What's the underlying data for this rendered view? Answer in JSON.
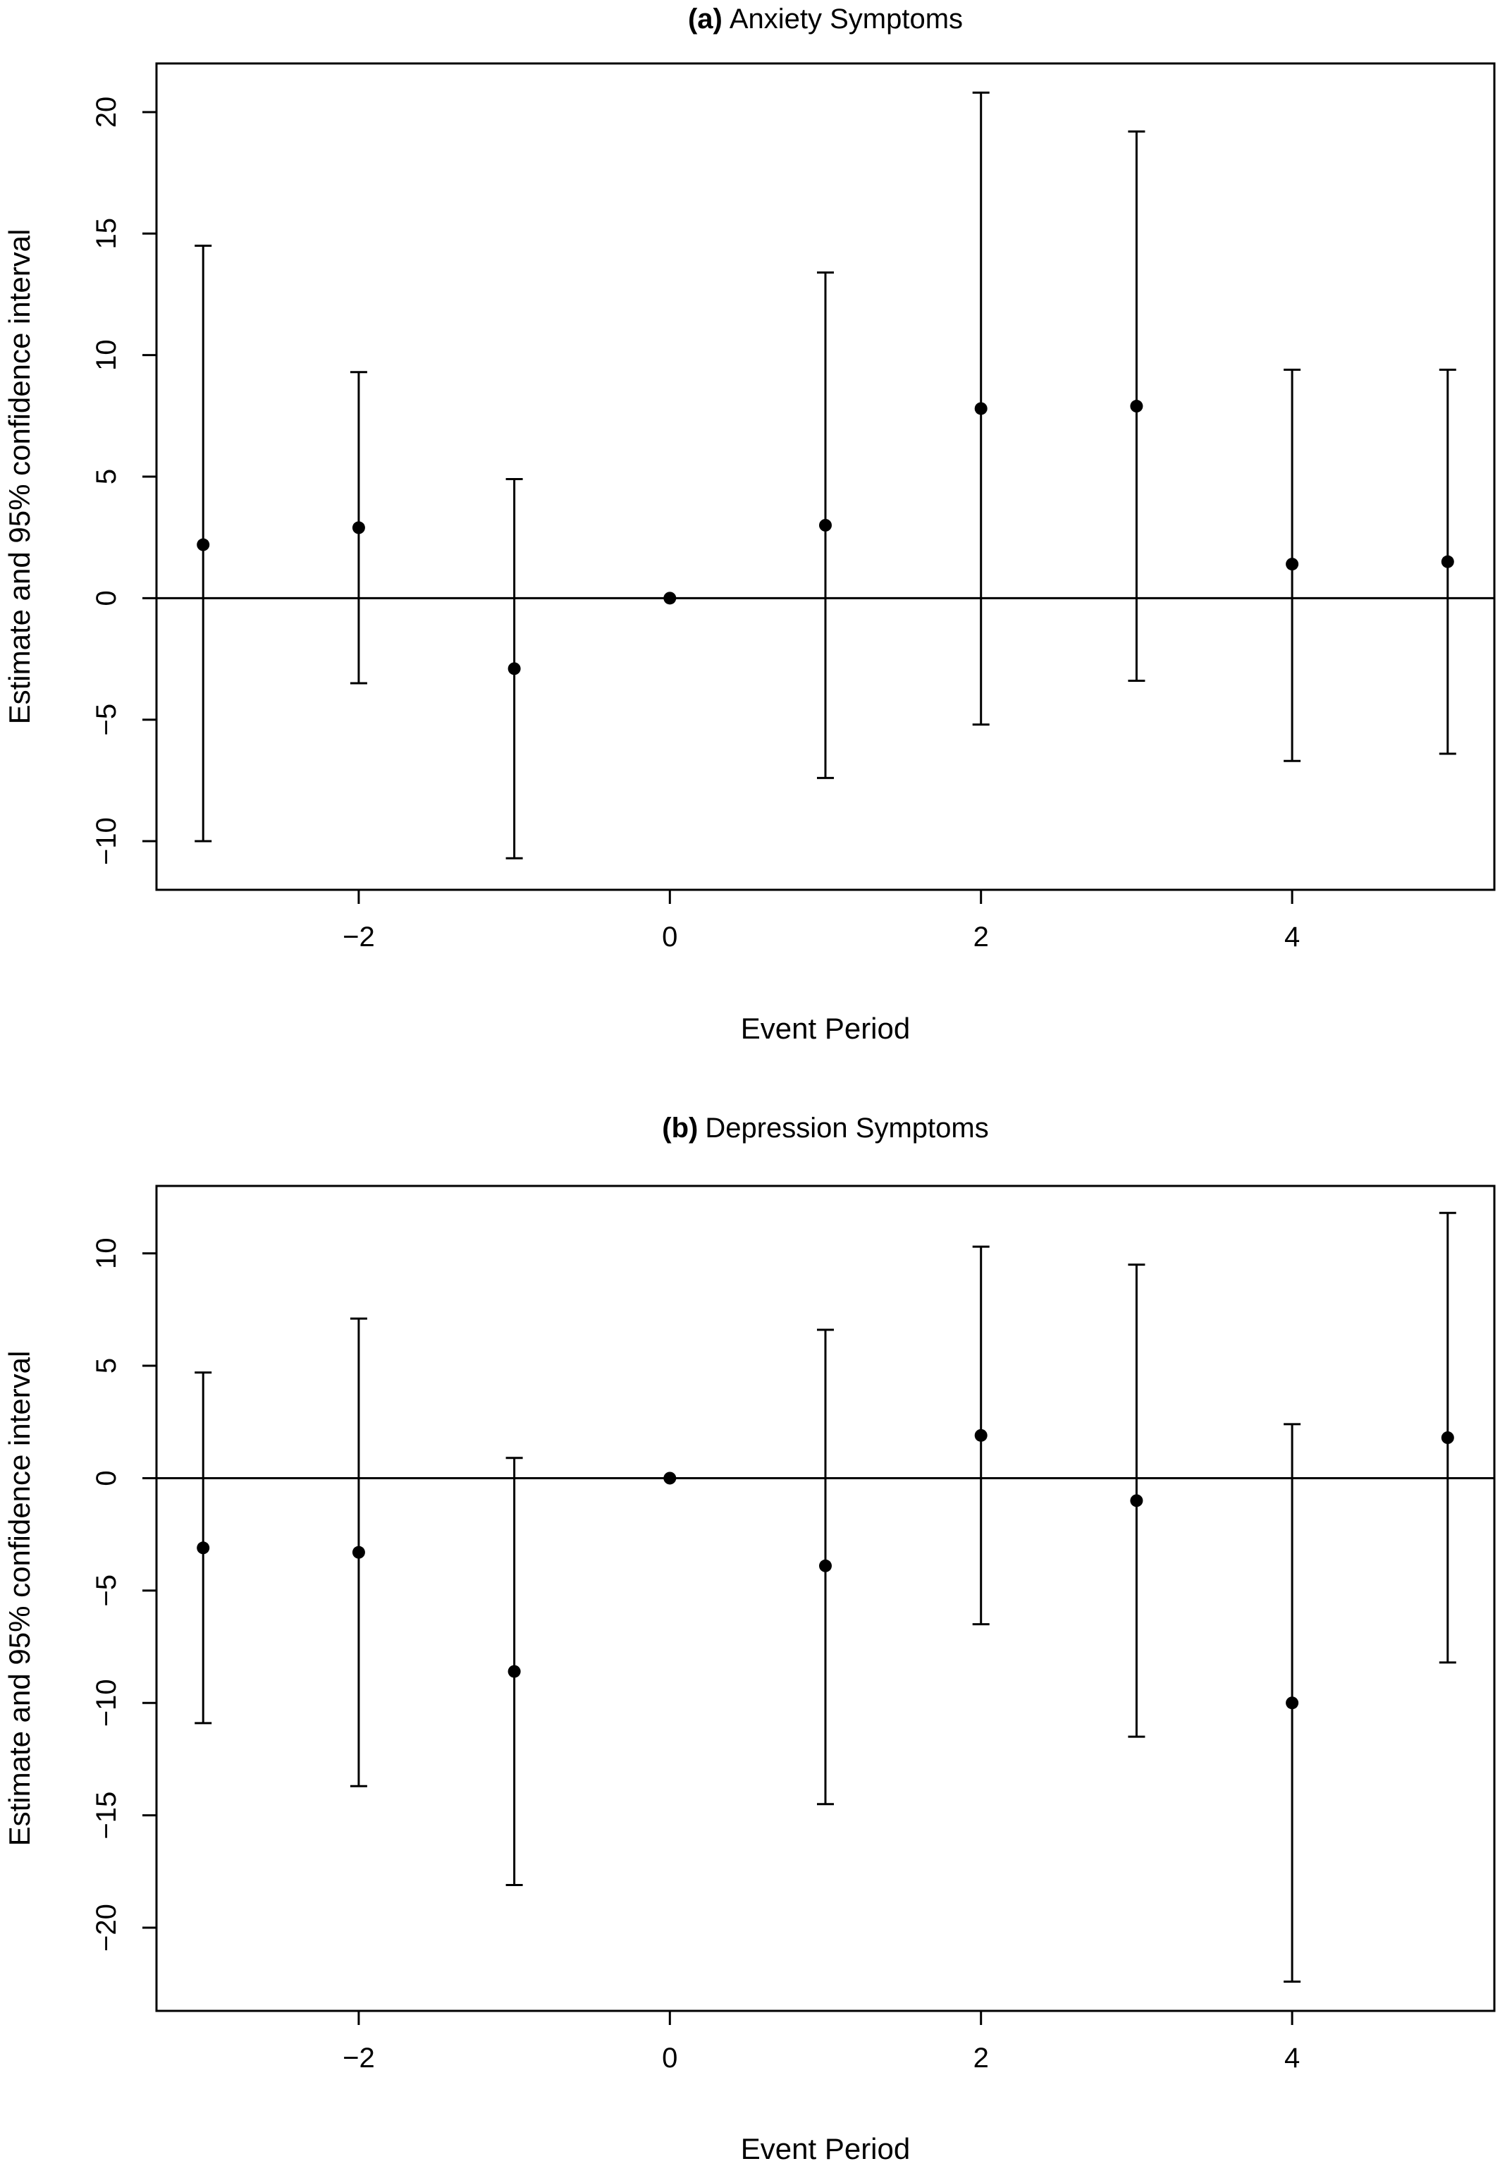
{
  "figure": {
    "colors": {
      "ink": "#000000",
      "background": "#ffffff"
    }
  },
  "chart_data": [
    {
      "type": "scatter",
      "panel_tag": "(a)",
      "title": "Anxiety Symptoms",
      "xlabel": "Event Period",
      "ylabel": "Estimate and 95% confidence interval",
      "xlim": [
        -3.3,
        5.3
      ],
      "ylim": [
        -12.0,
        22.0
      ],
      "xticks": [
        -2,
        0,
        2,
        4
      ],
      "xtick_labels": [
        "−2",
        "0",
        "2",
        "4"
      ],
      "yticks": [
        -10,
        -5,
        0,
        5,
        10,
        15,
        20
      ],
      "ytick_labels": [
        "−10",
        "−5",
        "0",
        "5",
        "10",
        "15",
        "20"
      ],
      "reference_line_y": 0,
      "grid": false,
      "legend": "none",
      "points": [
        {
          "x": -3,
          "y": 2.2,
          "lower": -10.0,
          "upper": 14.5
        },
        {
          "x": -2,
          "y": 2.9,
          "lower": -3.5,
          "upper": 9.3
        },
        {
          "x": -1,
          "y": -2.9,
          "lower": -10.7,
          "upper": 4.9
        },
        {
          "x": 0,
          "y": 0.0,
          "lower": 0.0,
          "upper": 0.0
        },
        {
          "x": 1,
          "y": 3.0,
          "lower": -7.4,
          "upper": 13.4
        },
        {
          "x": 2,
          "y": 7.8,
          "lower": -5.2,
          "upper": 20.8
        },
        {
          "x": 3,
          "y": 7.9,
          "lower": -3.4,
          "upper": 19.2
        },
        {
          "x": 4,
          "y": 1.4,
          "lower": -6.7,
          "upper": 9.4
        },
        {
          "x": 5,
          "y": 1.5,
          "lower": -6.4,
          "upper": 9.4
        }
      ]
    },
    {
      "type": "scatter",
      "panel_tag": "(b)",
      "title": "Depression Symptoms",
      "xlabel": "Event Period",
      "ylabel": "Estimate and 95% confidence interval",
      "xlim": [
        -3.3,
        5.3
      ],
      "ylim": [
        -23.7,
        13.0
      ],
      "xticks": [
        -2,
        0,
        2,
        4
      ],
      "xtick_labels": [
        "−2",
        "0",
        "2",
        "4"
      ],
      "yticks": [
        -20,
        -15,
        -10,
        -5,
        0,
        5,
        10
      ],
      "ytick_labels": [
        "−20",
        "−15",
        "−10",
        "−5",
        "0",
        "5",
        "10"
      ],
      "reference_line_y": 0,
      "grid": false,
      "legend": "none",
      "points": [
        {
          "x": -3,
          "y": -3.1,
          "lower": -10.9,
          "upper": 4.7
        },
        {
          "x": -2,
          "y": -3.3,
          "lower": -13.7,
          "upper": 7.1
        },
        {
          "x": -1,
          "y": -8.6,
          "lower": -18.1,
          "upper": 0.9
        },
        {
          "x": 0,
          "y": 0.0,
          "lower": 0.0,
          "upper": 0.0
        },
        {
          "x": 1,
          "y": -3.9,
          "lower": -14.5,
          "upper": 6.6
        },
        {
          "x": 2,
          "y": 1.9,
          "lower": -6.5,
          "upper": 10.3
        },
        {
          "x": 3,
          "y": -1.0,
          "lower": -11.5,
          "upper": 9.5
        },
        {
          "x": 4,
          "y": -10.0,
          "lower": -22.4,
          "upper": 2.4
        },
        {
          "x": 5,
          "y": 1.8,
          "lower": -8.2,
          "upper": 11.8
        }
      ]
    }
  ]
}
